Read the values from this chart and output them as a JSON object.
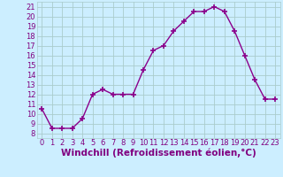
{
  "hours": [
    0,
    1,
    2,
    3,
    4,
    5,
    6,
    7,
    8,
    9,
    10,
    11,
    12,
    13,
    14,
    15,
    16,
    17,
    18,
    19,
    20,
    21,
    22,
    23
  ],
  "values": [
    10.5,
    8.5,
    8.5,
    8.5,
    9.5,
    12.0,
    12.5,
    12.0,
    12.0,
    12.0,
    14.5,
    16.5,
    17.0,
    18.5,
    19.5,
    20.5,
    20.5,
    21.0,
    20.5,
    18.5,
    16.0,
    13.5,
    11.5,
    11.5
  ],
  "line_color": "#8B008B",
  "marker": "+",
  "marker_size": 5,
  "bg_color": "#cceeff",
  "grid_color": "#aacccc",
  "xlabel": "Windchill (Refroidissement éolien,°C)",
  "xlim": [
    -0.5,
    23.5
  ],
  "ylim": [
    7.5,
    21.5
  ],
  "yticks": [
    8,
    9,
    10,
    11,
    12,
    13,
    14,
    15,
    16,
    17,
    18,
    19,
    20,
    21
  ],
  "xticks": [
    0,
    1,
    2,
    3,
    4,
    5,
    6,
    7,
    8,
    9,
    10,
    11,
    12,
    13,
    14,
    15,
    16,
    17,
    18,
    19,
    20,
    21,
    22,
    23
  ],
  "tick_color": "#800080",
  "label_fontsize": 7.5,
  "tick_fontsize": 6
}
